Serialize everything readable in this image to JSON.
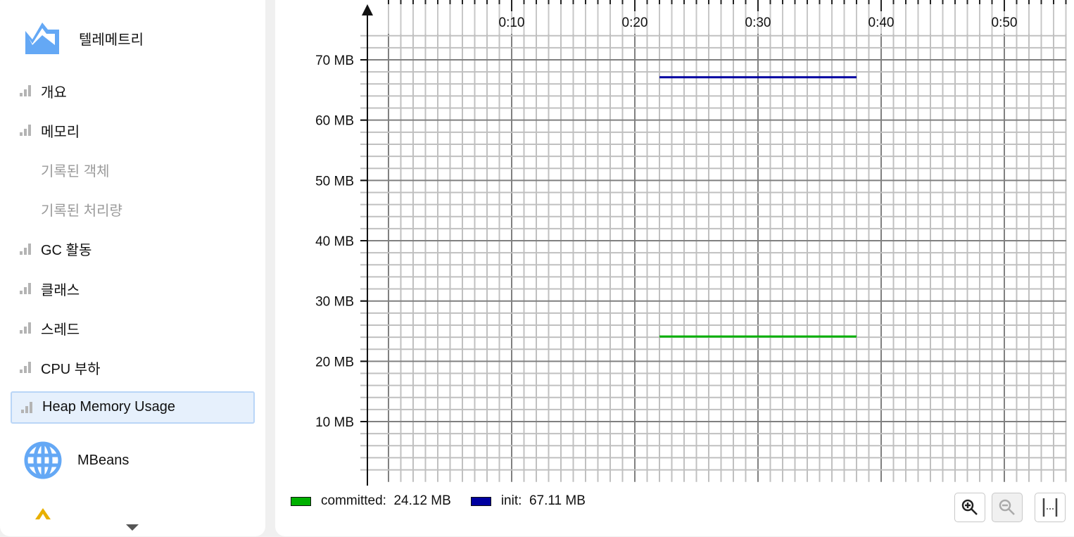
{
  "sidebar": {
    "header": {
      "title": "텔레메트리",
      "icon": "telemetry-chart-icon"
    },
    "items": [
      {
        "label": "개요",
        "type": "chart"
      },
      {
        "label": "메모리",
        "type": "chart"
      },
      {
        "label": "기록된 객체",
        "type": "sub"
      },
      {
        "label": "기록된 처리량",
        "type": "sub"
      },
      {
        "label": "GC 활동",
        "type": "chart"
      },
      {
        "label": "클래스",
        "type": "chart"
      },
      {
        "label": "스레드",
        "type": "chart"
      },
      {
        "label": "CPU 부하",
        "type": "chart"
      },
      {
        "label": "Heap Memory Usage",
        "type": "chart",
        "selected": true
      }
    ],
    "mbeans": {
      "label": "MBeans",
      "icon": "globe-icon"
    },
    "scroll_down": "chevron-down-icon"
  },
  "chart_data": {
    "type": "line",
    "x_unit": "m:ss",
    "xlim": [
      "0:00",
      "0:55"
    ],
    "x_ticks": [
      "0:10",
      "0:20",
      "0:30",
      "0:40",
      "0:50"
    ],
    "ylim": [
      0,
      74
    ],
    "y_ticks": [
      "10 MB",
      "20 MB",
      "30 MB",
      "40 MB",
      "50 MB",
      "60 MB",
      "70 MB"
    ],
    "grid": true,
    "legend_position": "bottom-left",
    "series": [
      {
        "name": "committed",
        "value_label": "24.12 MB",
        "color": "#00b000",
        "points": [
          [
            "0:22",
            24.12
          ],
          [
            "0:38",
            24.12
          ]
        ]
      },
      {
        "name": "init",
        "value_label": "67.11 MB",
        "color": "#0000a0",
        "points": [
          [
            "0:22",
            67.11
          ],
          [
            "0:38",
            67.11
          ]
        ]
      }
    ]
  },
  "controls": {
    "zoom_in": "zoom-in-icon",
    "zoom_out": "zoom-out-icon",
    "fit": "fit-width-icon"
  }
}
